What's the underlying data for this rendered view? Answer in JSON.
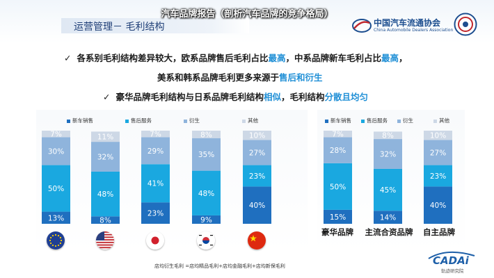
{
  "overlay_title": "汽车品牌报告（剖析汽车品牌的竞争格局）",
  "header": {
    "section_label": "运营管理－ 毛利结构",
    "association_cn": "中国汽车流通协会",
    "association_en": "China Automobile Dealers Association"
  },
  "bullets": [
    {
      "line1": [
        {
          "text": "各系别毛利结构差异较大，欧系品牌售后毛利占比",
          "hl": false
        },
        {
          "text": "最高",
          "hl": true
        },
        {
          "text": "，中系品牌新车毛利占比",
          "hl": false
        },
        {
          "text": "最高",
          "hl": true
        },
        {
          "text": "，",
          "hl": false
        }
      ],
      "line2": [
        {
          "text": "美系和韩系品牌毛利更多来源于",
          "hl": false
        },
        {
          "text": "售后和衍生",
          "hl": true
        }
      ]
    },
    {
      "line1": [
        {
          "text": "豪华品牌毛利结构与日系品牌毛利结构",
          "hl": false
        },
        {
          "text": "相似",
          "hl": true
        },
        {
          "text": "，毛利结构",
          "hl": false
        },
        {
          "text": "分散且均匀",
          "hl": true
        }
      ]
    }
  ],
  "bullet_marker": "✓",
  "colors": {
    "new_car": "#1f6fbf",
    "after_sales": "#1aa8e0",
    "derivative": "#8fb4dc",
    "other": "#cdd8e6",
    "highlight": "#1f8fd6"
  },
  "chart_data": [
    {
      "type": "bar",
      "stacked": true,
      "orientation": "vertical",
      "categories": [
        "欧系",
        "美系",
        "日系",
        "韩系",
        "中系"
      ],
      "category_flags": [
        "eu-flag-icon",
        "us-flag-icon",
        "japan-flag-icon",
        "korea-flag-icon",
        "china-flag-icon"
      ],
      "series": [
        {
          "name": "新车销售",
          "values": [
            13,
            8,
            23,
            9,
            40
          ]
        },
        {
          "name": "售后服务",
          "values": [
            50,
            48,
            41,
            48,
            23
          ]
        },
        {
          "name": "衍生",
          "values": [
            30,
            32,
            29,
            35,
            27
          ]
        },
        {
          "name": "其他",
          "values": [
            7,
            11,
            7,
            8,
            10
          ]
        }
      ],
      "unit": "%",
      "ylim": [
        0,
        100
      ]
    },
    {
      "type": "bar",
      "stacked": true,
      "orientation": "vertical",
      "categories": [
        "豪华品牌",
        "主流合资品牌",
        "自主品牌"
      ],
      "series": [
        {
          "name": "新车销售",
          "values": [
            15,
            14,
            40
          ]
        },
        {
          "name": "售后服务",
          "values": [
            50,
            45,
            23
          ]
        },
        {
          "name": "衍生",
          "values": [
            28,
            32,
            27
          ]
        },
        {
          "name": "其他",
          "values": [
            7,
            8,
            10
          ]
        }
      ],
      "unit": "%",
      "ylim": [
        0,
        100
      ]
    }
  ],
  "footnote": "店均衍生毛利 =店均精品毛利+店均金融毛利+店均新保毛利",
  "logo": {
    "name": "CADAi",
    "sub": "轨迹研究院"
  }
}
